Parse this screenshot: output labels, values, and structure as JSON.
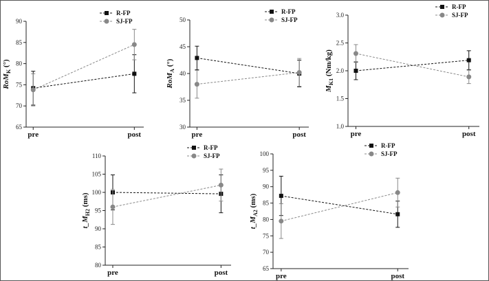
{
  "colors": {
    "R-FP": "#111111",
    "SJ-FP": "#888888",
    "axis": "#222222"
  },
  "chart_data": [
    {
      "type": "line",
      "ylabel": "RoM_K (°)",
      "ylim": [
        65,
        90
      ],
      "yticks": [
        65,
        70,
        75,
        80,
        85,
        90
      ],
      "categories": [
        "pre",
        "post"
      ],
      "legend_placement": "top-right",
      "series": [
        {
          "name": "R-FP",
          "marker": "square",
          "values": [
            74.2,
            77.6
          ],
          "error": [
            4.0,
            4.5
          ]
        },
        {
          "name": "SJ-FP",
          "marker": "circle",
          "values": [
            73.8,
            84.5
          ],
          "error": [
            3.8,
            3.6
          ]
        }
      ]
    },
    {
      "type": "line",
      "ylabel": "RoM_A (°)",
      "ylim": [
        30,
        50
      ],
      "yticks": [
        30,
        35,
        40,
        45,
        50
      ],
      "categories": [
        "pre",
        "post"
      ],
      "legend_placement": "top-right",
      "series": [
        {
          "name": "R-FP",
          "marker": "square",
          "values": [
            42.9,
            40.0
          ],
          "error": [
            2.2,
            2.5
          ]
        },
        {
          "name": "SJ-FP",
          "marker": "circle",
          "values": [
            38.0,
            40.2
          ],
          "error": [
            2.6,
            2.6
          ]
        }
      ]
    },
    {
      "type": "line",
      "ylabel": "M_K1 (Nm/kg)",
      "ylim": [
        1.0,
        3.0
      ],
      "yticks": [
        "1.0",
        "1.5",
        "2.0",
        "2.5",
        "3.0"
      ],
      "categories": [
        "pre",
        "post"
      ],
      "legend_placement": "top-right",
      "series": [
        {
          "name": "R-FP",
          "marker": "square",
          "values": [
            2.0,
            2.19
          ],
          "error": [
            0.16,
            0.17
          ]
        },
        {
          "name": "SJ-FP",
          "marker": "circle",
          "values": [
            2.31,
            1.89
          ],
          "error": [
            0.16,
            0.12
          ]
        }
      ]
    },
    {
      "type": "line",
      "ylabel": "t_M_H2 (ms)",
      "ylim": [
        80,
        110
      ],
      "yticks": [
        80,
        85,
        90,
        95,
        100,
        105,
        110
      ],
      "categories": [
        "pre",
        "post"
      ],
      "legend_placement": "top-right",
      "series": [
        {
          "name": "R-FP",
          "marker": "square",
          "values": [
            100.0,
            99.6
          ],
          "error": [
            4.8,
            5.2
          ]
        },
        {
          "name": "SJ-FP",
          "marker": "circle",
          "values": [
            96.0,
            102.0
          ],
          "error": [
            4.8,
            4.4
          ]
        }
      ]
    },
    {
      "type": "line",
      "ylabel": "t_M_A2 (ms)",
      "ylim": [
        65,
        100
      ],
      "yticks": [
        65,
        70,
        75,
        80,
        85,
        90,
        95,
        100
      ],
      "categories": [
        "pre",
        "post"
      ],
      "legend_placement": "top-right",
      "series": [
        {
          "name": "R-FP",
          "marker": "square",
          "values": [
            87.2,
            81.6
          ],
          "error": [
            6.0,
            4.0
          ]
        },
        {
          "name": "SJ-FP",
          "marker": "circle",
          "values": [
            79.5,
            88.2
          ],
          "error": [
            5.3,
            4.4
          ]
        }
      ]
    }
  ]
}
